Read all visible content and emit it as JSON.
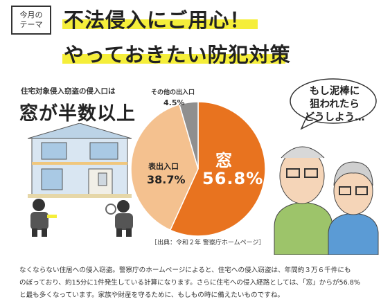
{
  "theme_tag": {
    "line1": "今月の",
    "line2": "テーマ"
  },
  "title": {
    "line1": "不法侵入にご用心！",
    "line2": "やっておきたい防犯対策"
  },
  "subtitle": {
    "line1": "住宅対象侵入窃盗の侵入口は",
    "line2": "窓が半数以上"
  },
  "speech_bubble": {
    "line1": "もし泥棒に",
    "line2": "狙われたら",
    "line3": "どうしよう…"
  },
  "source": "［出典：令和２年 警察庁ホームページ］",
  "body": {
    "line1": "なくならない住居への侵入窃盗。警察庁のホームページによると、住宅への侵入窃盗は、年間約３万６千件にも",
    "line2": "のぼっており、約15分に1件発生している計算になります。さらに住宅への侵入経路としては、「窓」からが56.8%",
    "line3": "と最も多くなっています。家族や財産を守るために、もしもの時に備えたいものですね。"
  },
  "chart_data": {
    "type": "pie",
    "slices": [
      {
        "label": "窓",
        "value": 56.8,
        "display": "56.8%",
        "color": "#e8731f"
      },
      {
        "label": "表出入口",
        "value": 38.7,
        "display": "38.7%",
        "color": "#f4c18f"
      },
      {
        "label": "その他の出入口",
        "value": 4.5,
        "display": "4.5%",
        "color": "#8f8f8f"
      }
    ]
  },
  "colors": {
    "highlight": "#f5ee3a",
    "accent_orange": "#e8731f",
    "peach": "#f4c18f",
    "gray": "#8f8f8f"
  }
}
